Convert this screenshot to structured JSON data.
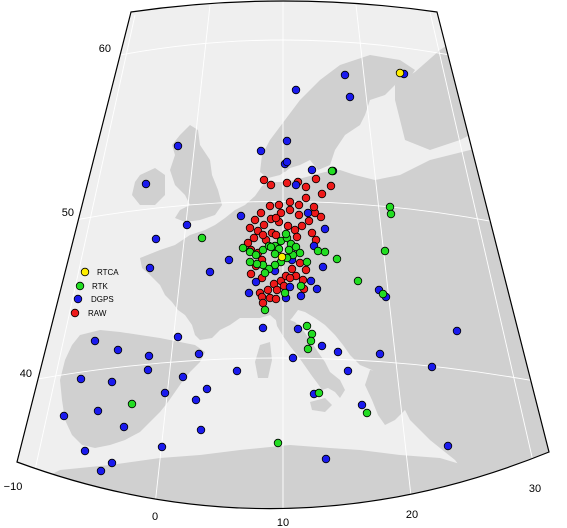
{
  "map": {
    "colors": {
      "ocean": "#efefef",
      "land": "#d0d0d0",
      "graticule": "#ffffff",
      "frame": "#000000"
    },
    "lat_labels": [
      "60",
      "50",
      "40"
    ],
    "lon_labels": [
      "−10",
      "0",
      "10",
      "20",
      "30"
    ]
  },
  "legend": {
    "items": [
      {
        "label": "RTCA",
        "color": "#ffee00"
      },
      {
        "label": "RTK",
        "color": "#22dd22"
      },
      {
        "label": "DGPS",
        "color": "#1a1aee"
      },
      {
        "label": "RAW",
        "color": "#ee1a1a"
      }
    ]
  },
  "stations": {
    "RTCA": [
      [
        400,
        73
      ],
      [
        282,
        257
      ]
    ],
    "RTK": [
      [
        202,
        238
      ],
      [
        332,
        171
      ],
      [
        390,
        207
      ],
      [
        391,
        214
      ],
      [
        385,
        251
      ],
      [
        383,
        294
      ],
      [
        318,
        251
      ],
      [
        337,
        259
      ],
      [
        358,
        281
      ],
      [
        325,
        252
      ],
      [
        307,
        262
      ],
      [
        301,
        286
      ],
      [
        285,
        293
      ],
      [
        265,
        310
      ],
      [
        243,
        248
      ],
      [
        250,
        252
      ],
      [
        256,
        255
      ],
      [
        263,
        250
      ],
      [
        269,
        246
      ],
      [
        275,
        246
      ],
      [
        281,
        241
      ],
      [
        287,
        238
      ],
      [
        291,
        244
      ],
      [
        296,
        247
      ],
      [
        300,
        253
      ],
      [
        293,
        255
      ],
      [
        287,
        258
      ],
      [
        281,
        262
      ],
      [
        275,
        265
      ],
      [
        269,
        269
      ],
      [
        263,
        265
      ],
      [
        257,
        264
      ],
      [
        250,
        262
      ],
      [
        265,
        273
      ],
      [
        271,
        247
      ],
      [
        279,
        249
      ],
      [
        289,
        250
      ],
      [
        275,
        254
      ],
      [
        286,
        234
      ],
      [
        307,
        326
      ],
      [
        312,
        334
      ],
      [
        311,
        341
      ],
      [
        308,
        349
      ],
      [
        319,
        393
      ],
      [
        367,
        413
      ],
      [
        132,
        404
      ],
      [
        278,
        443
      ]
    ],
    "DGPS": [
      [
        296,
        90
      ],
      [
        345,
        75
      ],
      [
        350,
        97
      ],
      [
        404,
        74
      ],
      [
        287,
        141
      ],
      [
        261,
        151
      ],
      [
        285,
        164
      ],
      [
        333,
        171
      ],
      [
        312,
        170
      ],
      [
        178,
        146
      ],
      [
        146,
        184
      ],
      [
        187,
        225
      ],
      [
        156,
        239
      ],
      [
        241,
        216
      ],
      [
        308,
        213
      ],
      [
        325,
        229
      ],
      [
        314,
        246
      ],
      [
        323,
        267
      ],
      [
        311,
        281
      ],
      [
        290,
        287
      ],
      [
        317,
        289
      ],
      [
        301,
        296
      ],
      [
        286,
        298
      ],
      [
        275,
        271
      ],
      [
        256,
        282
      ],
      [
        249,
        293
      ],
      [
        210,
        272
      ],
      [
        150,
        268
      ],
      [
        178,
        337
      ],
      [
        95,
        341
      ],
      [
        118,
        350
      ],
      [
        149,
        356
      ],
      [
        199,
        354
      ],
      [
        81,
        379
      ],
      [
        112,
        382
      ],
      [
        148,
        370
      ],
      [
        183,
        377
      ],
      [
        237,
        371
      ],
      [
        293,
        358
      ],
      [
        322,
        346
      ],
      [
        263,
        328
      ],
      [
        298,
        329
      ],
      [
        338,
        352
      ],
      [
        314,
        394
      ],
      [
        348,
        371
      ],
      [
        380,
        354
      ],
      [
        379,
        290
      ],
      [
        386,
        297
      ],
      [
        457,
        331
      ],
      [
        432,
        367
      ],
      [
        64,
        416
      ],
      [
        98,
        411
      ],
      [
        124,
        427
      ],
      [
        165,
        393
      ],
      [
        207,
        389
      ],
      [
        196,
        400
      ],
      [
        201,
        430
      ],
      [
        162,
        447
      ],
      [
        85,
        451
      ],
      [
        101,
        471
      ],
      [
        112,
        463
      ],
      [
        326,
        459
      ],
      [
        362,
        405
      ],
      [
        448,
        446
      ],
      [
        229,
        260
      ],
      [
        296,
        185
      ],
      [
        287,
        162
      ],
      [
        292,
        260
      ]
    ],
    "RAW": [
      [
        264,
        180
      ],
      [
        271,
        185
      ],
      [
        287,
        183
      ],
      [
        298,
        182
      ],
      [
        306,
        187
      ],
      [
        316,
        179
      ],
      [
        331,
        186
      ],
      [
        322,
        194
      ],
      [
        306,
        198
      ],
      [
        299,
        205
      ],
      [
        290,
        210
      ],
      [
        279,
        205
      ],
      [
        270,
        206
      ],
      [
        261,
        213
      ],
      [
        255,
        220
      ],
      [
        250,
        228
      ],
      [
        254,
        238
      ],
      [
        248,
        243
      ],
      [
        251,
        250
      ],
      [
        258,
        253
      ],
      [
        262,
        260
      ],
      [
        256,
        266
      ],
      [
        251,
        274
      ],
      [
        260,
        293
      ],
      [
        262,
        297
      ],
      [
        268,
        290
      ],
      [
        274,
        284
      ],
      [
        281,
        281
      ],
      [
        286,
        276
      ],
      [
        292,
        269
      ],
      [
        300,
        263
      ],
      [
        306,
        270
      ],
      [
        303,
        280
      ],
      [
        296,
        276
      ],
      [
        290,
        278
      ],
      [
        284,
        286
      ],
      [
        277,
        290
      ],
      [
        270,
        298
      ],
      [
        263,
        303
      ],
      [
        276,
        299
      ],
      [
        304,
        289
      ],
      [
        315,
        213
      ],
      [
        321,
        217
      ],
      [
        309,
        221
      ],
      [
        302,
        226
      ],
      [
        295,
        230
      ],
      [
        288,
        226
      ],
      [
        279,
        222
      ],
      [
        271,
        219
      ],
      [
        264,
        225
      ],
      [
        258,
        231
      ],
      [
        272,
        233
      ],
      [
        266,
        240
      ],
      [
        276,
        235
      ],
      [
        290,
        202
      ],
      [
        299,
        215
      ],
      [
        281,
        213
      ],
      [
        312,
        233
      ],
      [
        316,
        240
      ],
      [
        297,
        237
      ],
      [
        262,
        278
      ],
      [
        263,
        235
      ],
      [
        276,
        218
      ],
      [
        314,
        207
      ]
    ]
  }
}
